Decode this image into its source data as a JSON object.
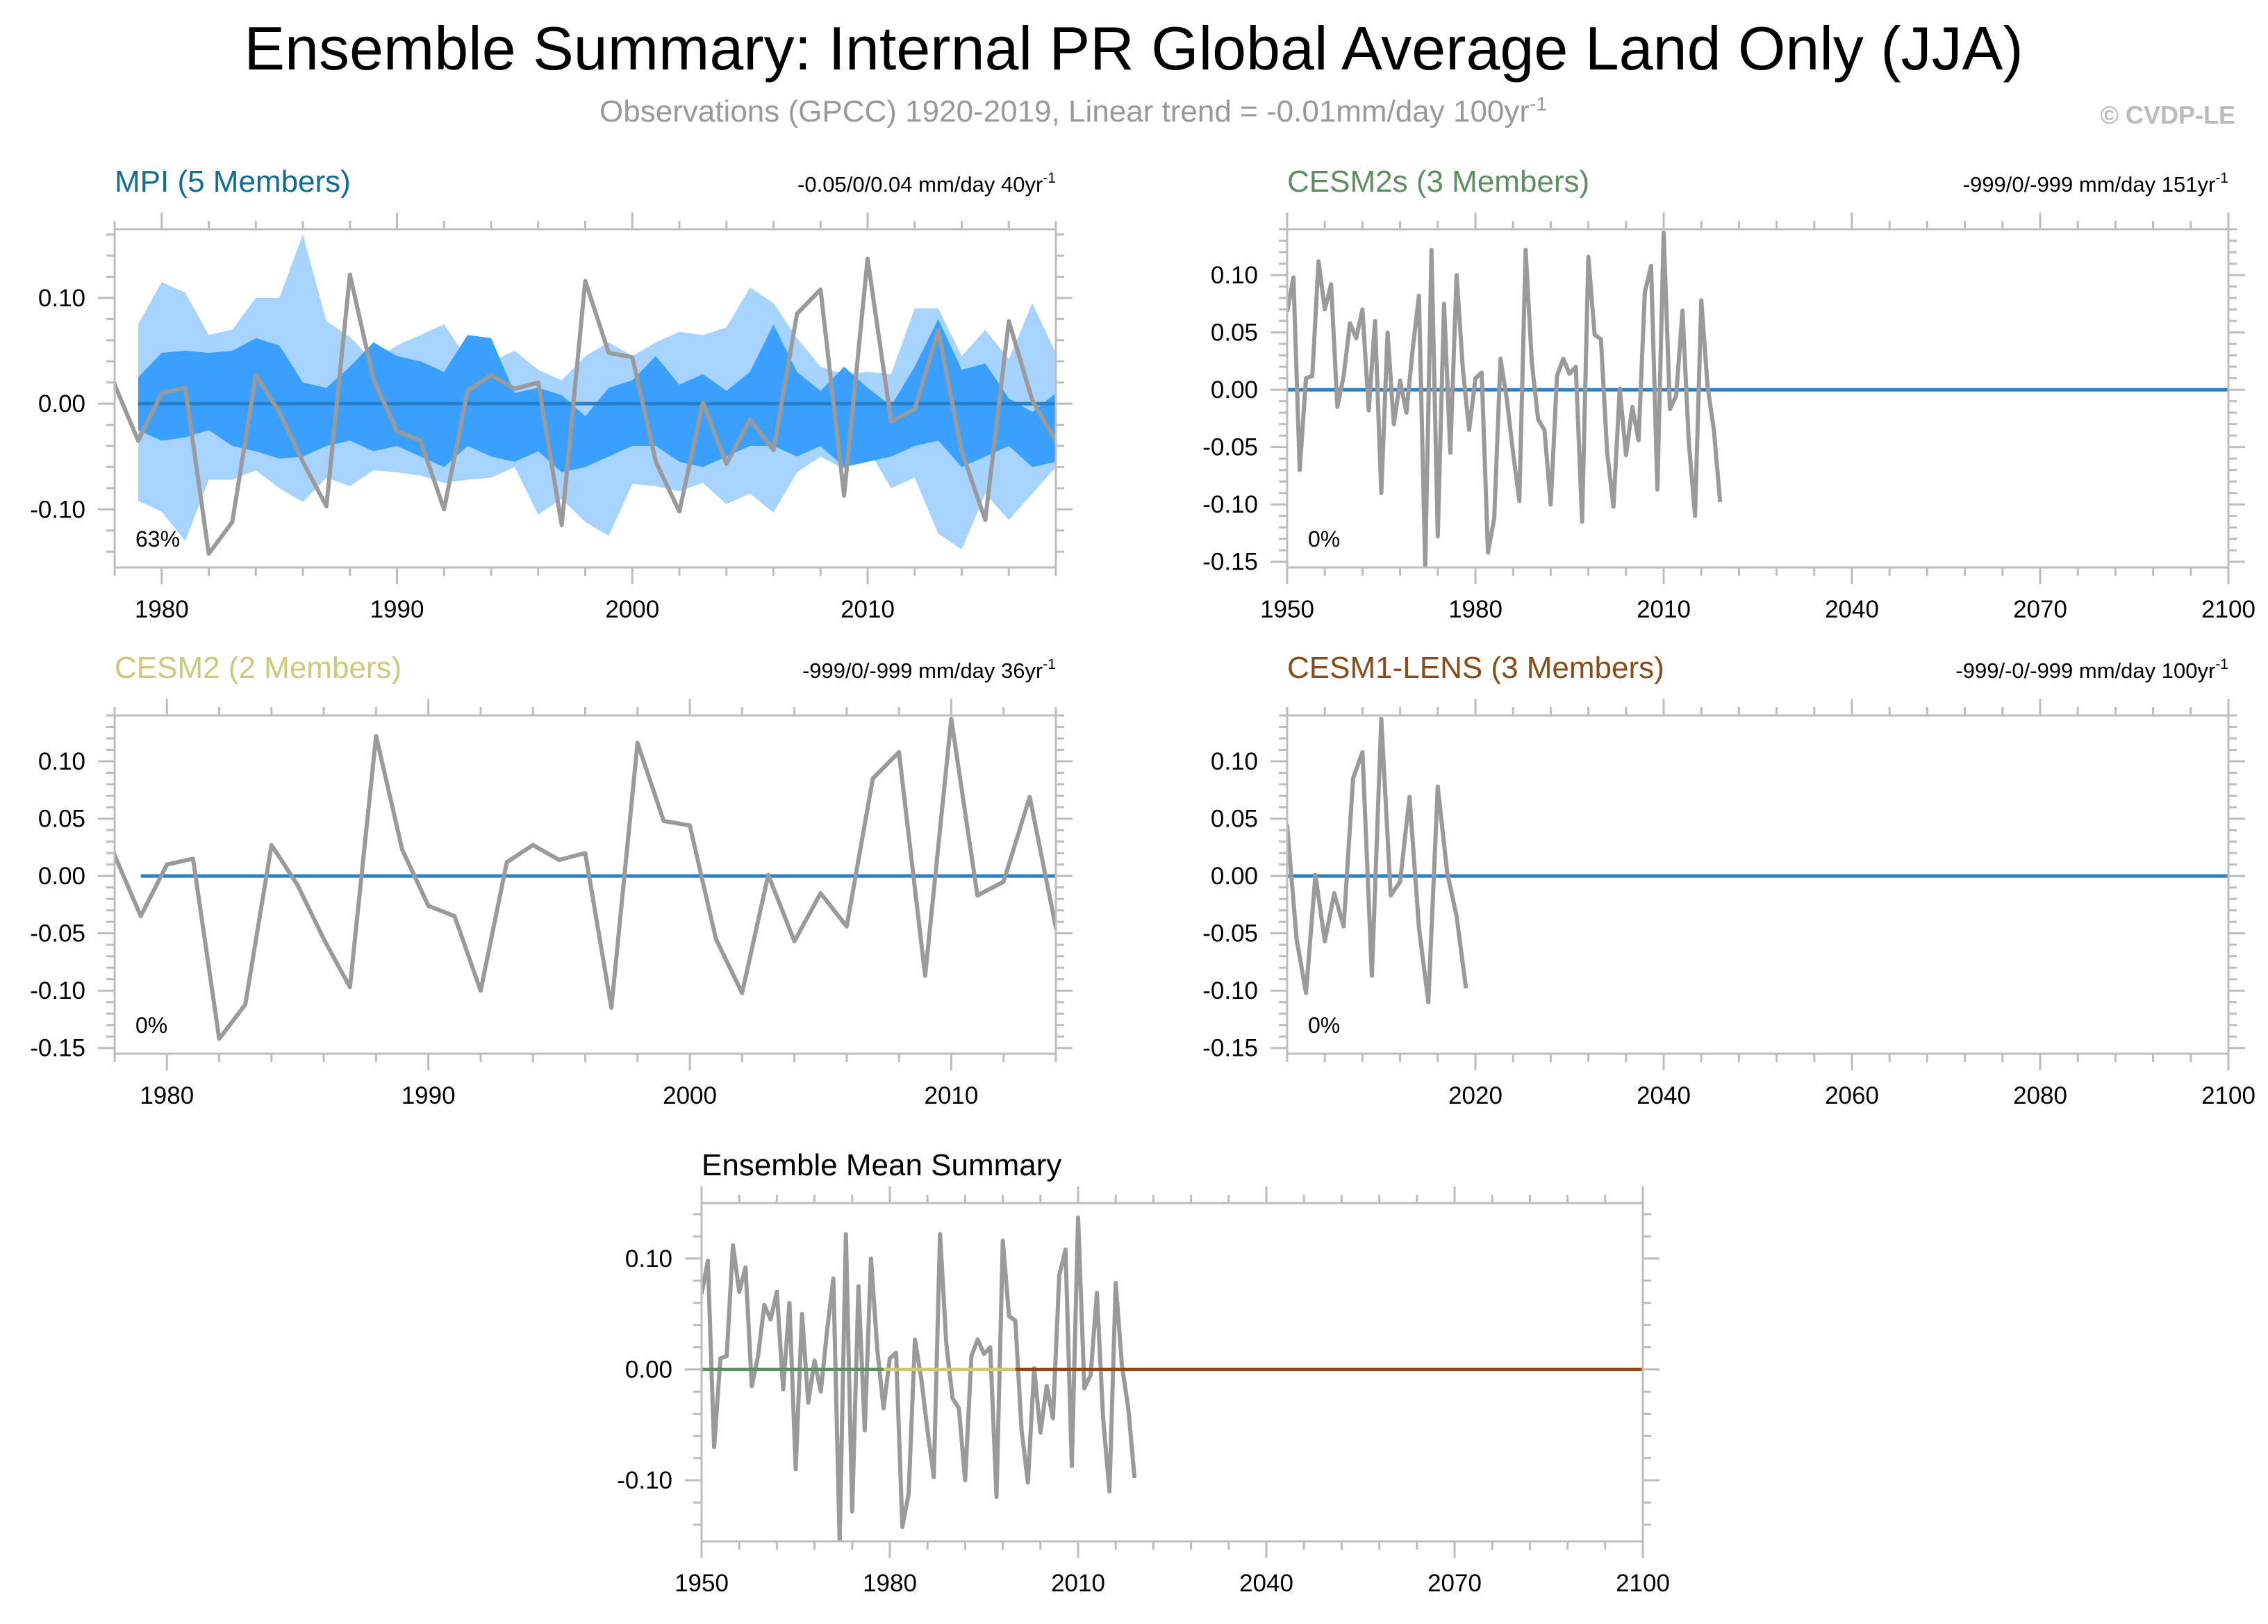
{
  "figure": {
    "title": "Ensemble Summary: Internal PR Global Average Land Only (JJA)",
    "subtitle": "Observations (GPCC) 1920-2019, Linear trend = -0.01mm/day 100yr",
    "subtitle_sup": "-1",
    "credit": "© CVDP-LE"
  },
  "colors": {
    "obs_line": "#9a9a9a",
    "ens_mean": "#2a7fc8",
    "band_outer": "#a6d3ff",
    "band_inner": "#3aa0ff",
    "mpi": "#0e6e93",
    "cesm2s": "#5f8f60",
    "cesm2": "#cfc87a",
    "cesm1": "#8b4a17"
  },
  "chart_data": [
    {
      "id": "mpi",
      "type": "area",
      "title": "MPI (5 Members)",
      "title_color": "#0e6e93",
      "trend": "-0.05/0/0.04 mm/day 40yr",
      "trend_sup": "-1",
      "pct": "63%",
      "xlim": [
        1978,
        2018
      ],
      "ylim": [
        -0.155,
        0.165
      ],
      "xticks": [
        1980,
        1990,
        2000,
        2010
      ],
      "xtick_labels": [
        "1980",
        "1990",
        "2000",
        "2010"
      ],
      "yticks": [
        -0.1,
        0.0,
        0.1
      ],
      "ytick_labels": [
        "-0.10",
        "0.00",
        "0.10"
      ],
      "band_x": [
        1979,
        1980,
        1981,
        1982,
        1983,
        1984,
        1985,
        1986,
        1987,
        1988,
        1989,
        1990,
        1991,
        1992,
        1993,
        1994,
        1995,
        1996,
        1997,
        1998,
        1999,
        2000,
        2001,
        2002,
        2003,
        2004,
        2005,
        2006,
        2007,
        2008,
        2009,
        2010,
        2011,
        2012,
        2013,
        2014,
        2015,
        2016,
        2017,
        2018
      ],
      "outer_upper": [
        0.075,
        0.115,
        0.105,
        0.065,
        0.07,
        0.1,
        0.1,
        0.16,
        0.078,
        0.063,
        0.04,
        0.055,
        0.065,
        0.075,
        0.042,
        0.04,
        0.05,
        0.032,
        0.022,
        0.045,
        0.058,
        0.045,
        0.058,
        0.068,
        0.065,
        0.072,
        0.11,
        0.095,
        0.062,
        0.035,
        0.028,
        0.03,
        0.028,
        0.09,
        0.09,
        0.045,
        0.07,
        0.042,
        0.095,
        0.048
      ],
      "inner_upper": [
        0.025,
        0.048,
        0.05,
        0.048,
        0.05,
        0.062,
        0.055,
        0.02,
        0.015,
        0.035,
        0.058,
        0.045,
        0.04,
        0.03,
        0.065,
        0.062,
        0.01,
        0.015,
        0.008,
        -0.012,
        0.015,
        0.022,
        0.045,
        0.018,
        0.028,
        0.012,
        0.03,
        0.075,
        0.03,
        0.012,
        0.035,
        0.015,
        -0.002,
        0.035,
        0.08,
        0.032,
        0.038,
        0.005,
        -0.008,
        0.01
      ],
      "inner_lower": [
        -0.025,
        -0.035,
        -0.032,
        -0.025,
        -0.04,
        -0.045,
        -0.052,
        -0.05,
        -0.04,
        -0.035,
        -0.045,
        -0.04,
        -0.05,
        -0.06,
        -0.04,
        -0.05,
        -0.055,
        -0.045,
        -0.065,
        -0.06,
        -0.05,
        -0.04,
        -0.04,
        -0.055,
        -0.06,
        -0.05,
        -0.04,
        -0.04,
        -0.05,
        -0.04,
        -0.06,
        -0.055,
        -0.05,
        -0.04,
        -0.035,
        -0.06,
        -0.05,
        -0.04,
        -0.06,
        -0.055
      ],
      "outer_lower": [
        -0.092,
        -0.102,
        -0.13,
        -0.072,
        -0.072,
        -0.063,
        -0.08,
        -0.093,
        -0.07,
        -0.078,
        -0.063,
        -0.065,
        -0.068,
        -0.075,
        -0.072,
        -0.07,
        -0.06,
        -0.105,
        -0.09,
        -0.112,
        -0.125,
        -0.076,
        -0.078,
        -0.083,
        -0.075,
        -0.095,
        -0.085,
        -0.103,
        -0.065,
        -0.05,
        -0.062,
        -0.042,
        -0.08,
        -0.07,
        -0.123,
        -0.138,
        -0.085,
        -0.11,
        -0.085,
        -0.06
      ],
      "ensmean_x": [
        1979,
        2018
      ],
      "ensmean_y": [
        0.0,
        0.0
      ]
    },
    {
      "id": "cesm2s",
      "type": "line",
      "title": "CESM2s (3 Members)",
      "title_color": "#5f8f60",
      "trend": "-999/0/-999 mm/day 151yr",
      "trend_sup": "-1",
      "pct": "0%",
      "xlim": [
        1950,
        2100
      ],
      "ylim": [
        -0.155,
        0.14
      ],
      "xticks": [
        1950,
        1980,
        2010,
        2040,
        2070,
        2100
      ],
      "xtick_labels": [
        "1950",
        "1980",
        "2010",
        "2040",
        "2070",
        "2100"
      ],
      "yticks": [
        -0.15,
        -0.1,
        -0.05,
        0.0,
        0.05,
        0.1
      ],
      "ytick_labels": [
        "-0.15",
        "-0.10",
        "-0.05",
        "0.00",
        "0.05",
        "0.10"
      ],
      "ensmean_x": [
        1950,
        2100
      ],
      "ensmean_y": [
        0.0,
        0.0
      ]
    },
    {
      "id": "cesm2",
      "type": "line",
      "title": "CESM2 (2 Members)",
      "title_color": "#cfc87a",
      "trend": "-999/0/-999 mm/day 36yr",
      "trend_sup": "-1",
      "pct": "0%",
      "xlim": [
        1978,
        2014
      ],
      "ylim": [
        -0.155,
        0.14
      ],
      "xticks": [
        1980,
        1990,
        2000,
        2010
      ],
      "xtick_labels": [
        "1980",
        "1990",
        "2000",
        "2010"
      ],
      "yticks": [
        -0.15,
        -0.1,
        -0.05,
        0.0,
        0.05,
        0.1
      ],
      "ytick_labels": [
        "-0.15",
        "-0.10",
        "-0.05",
        "0.00",
        "0.05",
        "0.10"
      ],
      "ensmean_x": [
        1979,
        2014
      ],
      "ensmean_y": [
        0.0,
        0.0
      ]
    },
    {
      "id": "cesm1",
      "type": "line",
      "title": "CESM1-LENS (3 Members)",
      "title_color": "#8b4a17",
      "trend": "-999/-0/-999 mm/day 100yr",
      "trend_sup": "-1",
      "pct": "0%",
      "xlim": [
        2000,
        2100
      ],
      "ylim": [
        -0.155,
        0.14
      ],
      "xticks": [
        2020,
        2040,
        2060,
        2080,
        2100
      ],
      "xtick_labels": [
        "2020",
        "2040",
        "2060",
        "2080",
        "2100"
      ],
      "yticks": [
        -0.15,
        -0.1,
        -0.05,
        0.0,
        0.05,
        0.1
      ],
      "ytick_labels": [
        "-0.15",
        "-0.10",
        "-0.05",
        "0.00",
        "0.05",
        "0.10"
      ],
      "ensmean_x": [
        2000,
        2100
      ],
      "ensmean_y": [
        0.0,
        0.0
      ]
    },
    {
      "id": "ensmean",
      "type": "line",
      "title": "Ensemble Mean Summary",
      "xlim": [
        1950,
        2100
      ],
      "ylim": [
        -0.155,
        0.15
      ],
      "xticks": [
        1950,
        1980,
        2010,
        2040,
        2070,
        2100
      ],
      "xtick_labels": [
        "1950",
        "1980",
        "2010",
        "2040",
        "2070",
        "2100"
      ],
      "yticks": [
        -0.1,
        0.0,
        0.1
      ],
      "ytick_labels": [
        "-0.10",
        "0.00",
        "0.10"
      ],
      "mean_lines": [
        {
          "name": "CESM2s",
          "x": [
            1950,
            1979
          ],
          "y": [
            0.0,
            0.0
          ],
          "color": "#5f8f60"
        },
        {
          "name": "CESM2",
          "x": [
            1979,
            2000
          ],
          "y": [
            0.0,
            0.0
          ],
          "color": "#cfc87a"
        },
        {
          "name": "CESM1-LENS",
          "x": [
            2000,
            2100
          ],
          "y": [
            0.0,
            0.0
          ],
          "color": "#8b4a17"
        }
      ]
    }
  ],
  "observations": {
    "name": "GPCC",
    "x": [
      1950,
      1951,
      1952,
      1953,
      1954,
      1955,
      1956,
      1957,
      1958,
      1959,
      1960,
      1961,
      1962,
      1963,
      1964,
      1965,
      1966,
      1967,
      1968,
      1969,
      1970,
      1971,
      1972,
      1973,
      1974,
      1975,
      1976,
      1977,
      1978,
      1979,
      1980,
      1981,
      1982,
      1983,
      1984,
      1985,
      1986,
      1987,
      1988,
      1989,
      1990,
      1991,
      1992,
      1993,
      1994,
      1995,
      1996,
      1997,
      1998,
      1999,
      2000,
      2001,
      2002,
      2003,
      2004,
      2005,
      2006,
      2007,
      2008,
      2009,
      2010,
      2011,
      2012,
      2013,
      2014,
      2015,
      2016,
      2017,
      2018,
      2019
    ],
    "y": [
      0.068,
      0.098,
      -0.07,
      0.01,
      0.012,
      0.112,
      0.07,
      0.092,
      -0.015,
      0.012,
      0.058,
      0.045,
      0.07,
      -0.018,
      0.06,
      -0.09,
      0.05,
      -0.03,
      0.008,
      -0.02,
      0.035,
      0.082,
      -0.155,
      0.122,
      -0.128,
      0.075,
      -0.055,
      0.1,
      0.018,
      -0.035,
      0.01,
      0.015,
      -0.142,
      -0.112,
      0.027,
      -0.008,
      -0.055,
      -0.097,
      0.122,
      0.023,
      -0.026,
      -0.035,
      -0.1,
      0.012,
      0.027,
      0.014,
      0.02,
      -0.115,
      0.116,
      0.048,
      0.044,
      -0.055,
      -0.102,
      0.001,
      -0.057,
      -0.015,
      -0.044,
      0.085,
      0.108,
      -0.087,
      0.137,
      -0.017,
      -0.005,
      0.069,
      -0.045,
      -0.11,
      0.078,
      0.003,
      -0.035,
      -0.098
    ]
  }
}
